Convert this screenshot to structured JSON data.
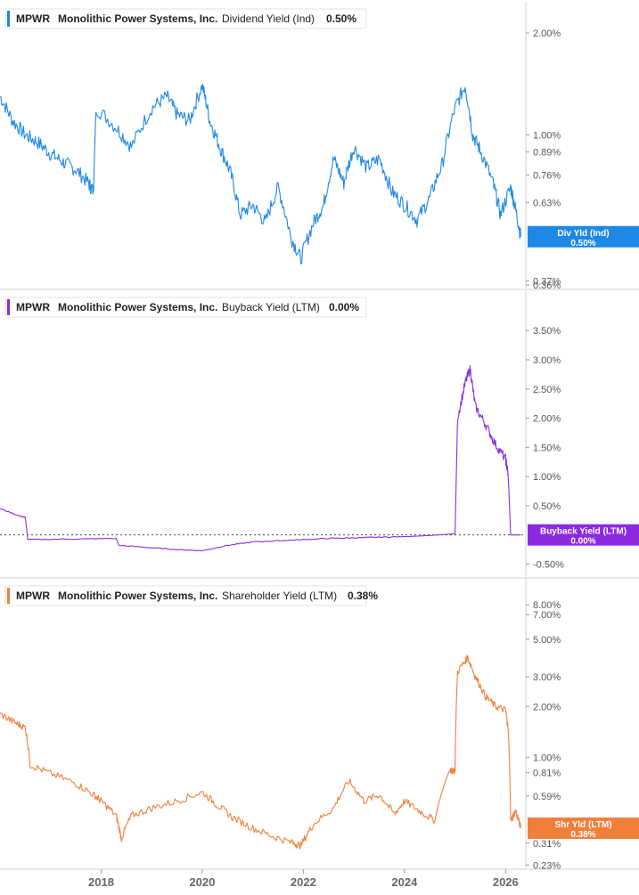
{
  "chart_data": [
    {
      "type": "line",
      "ticker": "MPWR",
      "company": "Monolithic Power Systems, Inc.",
      "metric": "Dividend Yield (Ind)",
      "current_value": "0.50%",
      "tag": {
        "label": "Div Yld (Ind)",
        "value": "0.50%"
      },
      "color": "#1e88e5",
      "scale": "log",
      "ylim": [
        0.36,
        2.3
      ],
      "y_ticks": [
        "2.00%",
        "1.00%",
        "0.89%",
        "0.76%",
        "0.63%",
        "0.37%",
        "0.36%"
      ],
      "y_tick_values": [
        2.0,
        1.0,
        0.89,
        0.76,
        0.63,
        0.37,
        0.36
      ],
      "x": [
        2016.0,
        2016.25,
        2016.5,
        2016.75,
        2017.0,
        2017.25,
        2017.5,
        2017.75,
        2017.85,
        2017.9,
        2018.3,
        2018.6,
        2019.0,
        2019.3,
        2019.5,
        2019.75,
        2020.0,
        2020.15,
        2020.35,
        2020.55,
        2020.75,
        2021.0,
        2021.25,
        2021.5,
        2021.75,
        2021.95,
        2022.2,
        2022.4,
        2022.6,
        2022.8,
        2023.0,
        2023.25,
        2023.5,
        2023.75,
        2024.0,
        2024.25,
        2024.5,
        2024.75,
        2025.0,
        2025.2,
        2025.35,
        2025.5,
        2025.75,
        2025.9,
        2026.1,
        2026.2,
        2026.3
      ],
      "values": [
        1.3,
        1.1,
        1.0,
        0.95,
        0.88,
        0.83,
        0.79,
        0.72,
        0.68,
        1.2,
        1.05,
        0.92,
        1.2,
        1.3,
        1.15,
        1.1,
        1.4,
        1.1,
        0.92,
        0.78,
        0.58,
        0.62,
        0.55,
        0.7,
        0.5,
        0.43,
        0.55,
        0.62,
        0.85,
        0.72,
        0.92,
        0.8,
        0.85,
        0.68,
        0.62,
        0.56,
        0.65,
        0.82,
        1.2,
        1.4,
        1.0,
        0.9,
        0.72,
        0.58,
        0.7,
        0.6,
        0.5
      ]
    },
    {
      "type": "line",
      "ticker": "MPWR",
      "company": "Monolithic Power Systems, Inc.",
      "metric": "Buyback Yield (LTM)",
      "current_value": "0.00%",
      "tag": {
        "label": "Buyback Yield (LTM)",
        "value": "0.00%"
      },
      "color": "#8a2be2",
      "scale": "linear",
      "ylim": [
        -0.6,
        3.9
      ],
      "y_ticks": [
        "3.50%",
        "3.00%",
        "2.50%",
        "2.00%",
        "1.50%",
        "1.00%",
        "0.50%",
        "-0.50%"
      ],
      "y_tick_values": [
        3.5,
        3.0,
        2.5,
        2.0,
        1.5,
        1.0,
        0.5,
        -0.5
      ],
      "zero_line": true,
      "x": [
        2016.0,
        2016.4,
        2016.5,
        2016.55,
        2017.5,
        2018.3,
        2018.35,
        2019.0,
        2019.5,
        2020.0,
        2020.5,
        2021.0,
        2021.5,
        2022.0,
        2022.5,
        2023.0,
        2023.5,
        2024.0,
        2024.5,
        2025.0,
        2025.05,
        2025.2,
        2025.3,
        2025.4,
        2025.6,
        2025.8,
        2026.0,
        2026.05,
        2026.1,
        2026.3
      ],
      "values": [
        0.45,
        0.32,
        0.3,
        -0.08,
        -0.07,
        -0.06,
        -0.18,
        -0.22,
        -0.25,
        -0.27,
        -0.18,
        -0.12,
        -0.1,
        -0.08,
        -0.06,
        -0.05,
        -0.04,
        -0.03,
        -0.01,
        0.02,
        2.0,
        2.6,
        2.85,
        2.2,
        1.9,
        1.55,
        1.3,
        1.05,
        0.0,
        0.0
      ]
    },
    {
      "type": "line",
      "ticker": "MPWR",
      "company": "Monolithic Power Systems, Inc.",
      "metric": "Shareholder Yield (LTM)",
      "current_value": "0.38%",
      "tag": {
        "label": "Shr Yld (LTM)",
        "value": "0.38%"
      },
      "color": "#f07f3c",
      "scale": "log",
      "ylim": [
        0.22,
        9.5
      ],
      "y_ticks": [
        "8.00%",
        "7.00%",
        "5.00%",
        "3.00%",
        "2.00%",
        "1.00%",
        "0.81%",
        "0.59%",
        "0.31%",
        "0.23%"
      ],
      "y_tick_values": [
        8.0,
        7.0,
        5.0,
        3.0,
        2.0,
        1.0,
        0.81,
        0.59,
        0.31,
        0.23
      ],
      "x": [
        2016.0,
        2016.3,
        2016.5,
        2016.6,
        2017.0,
        2017.5,
        2017.85,
        2018.0,
        2018.3,
        2018.4,
        2018.6,
        2019.0,
        2019.5,
        2020.0,
        2020.3,
        2020.6,
        2021.0,
        2021.4,
        2021.8,
        2021.95,
        2022.2,
        2022.6,
        2022.9,
        2023.2,
        2023.5,
        2023.8,
        2024.0,
        2024.3,
        2024.6,
        2024.9,
        2025.0,
        2025.05,
        2025.25,
        2025.4,
        2025.6,
        2025.8,
        2026.0,
        2026.05,
        2026.1,
        2026.2,
        2026.3
      ],
      "values": [
        1.8,
        1.6,
        1.5,
        0.9,
        0.8,
        0.7,
        0.6,
        0.55,
        0.45,
        0.33,
        0.45,
        0.5,
        0.55,
        0.62,
        0.52,
        0.44,
        0.38,
        0.34,
        0.31,
        0.3,
        0.4,
        0.5,
        0.72,
        0.55,
        0.6,
        0.46,
        0.55,
        0.48,
        0.42,
        0.85,
        0.82,
        3.2,
        3.9,
        3.0,
        2.3,
        2.0,
        1.9,
        1.5,
        0.42,
        0.48,
        0.38
      ]
    }
  ],
  "x_axis": {
    "ticks": [
      "2018",
      "2020",
      "2022",
      "2024",
      "2026"
    ],
    "tick_values": [
      2018,
      2020,
      2022,
      2024,
      2026
    ],
    "range": [
      2016.0,
      2026.4
    ]
  }
}
